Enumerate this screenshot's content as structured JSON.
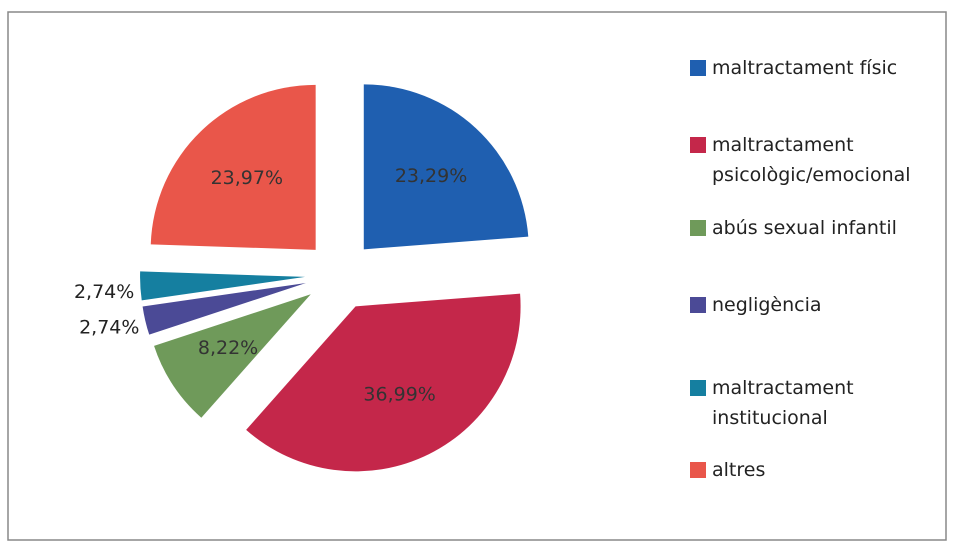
{
  "chart_data": {
    "type": "pie",
    "series": [
      {
        "name": "maltractament físic",
        "color": "#1f5fb0"
      },
      {
        "name": "maltractament psicològic/emocional",
        "color": "#c4274a"
      },
      {
        "name": "abús sexual infantil",
        "color": "#6f9a5a"
      },
      {
        "name": "negligència",
        "color": "#4b4a96"
      },
      {
        "name": "maltractament institucional",
        "color": "#157fa0"
      },
      {
        "name": "altres",
        "color": "#e9564a"
      }
    ],
    "values": [
      23.29,
      36.99,
      8.22,
      2.74,
      2.74,
      23.97
    ],
    "value_labels": [
      "23,29%",
      "36,99%",
      "8,22%",
      "2,74%",
      "2,74%",
      "23,97%"
    ],
    "legend": "right"
  }
}
